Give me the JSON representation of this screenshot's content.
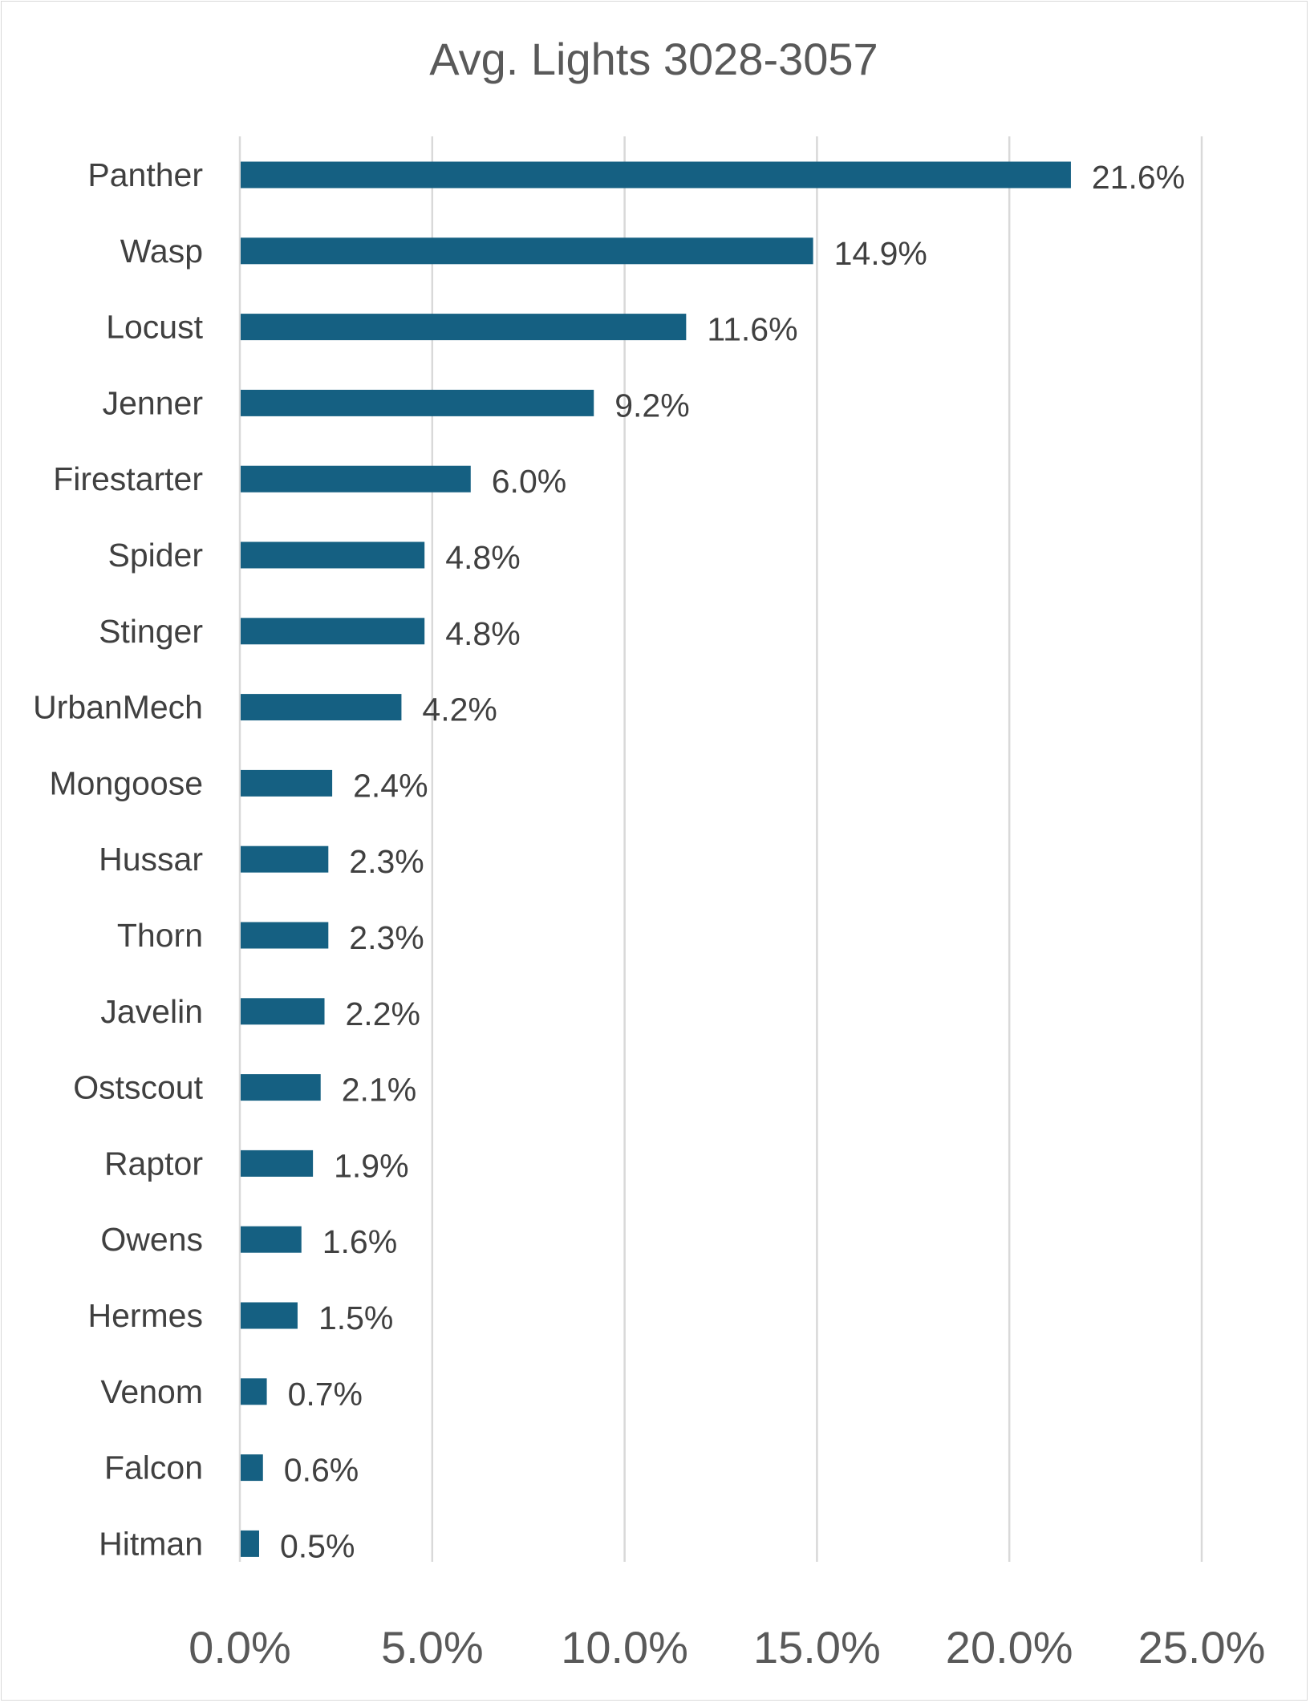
{
  "chart_data": {
    "type": "bar",
    "orientation": "horizontal",
    "title": "Avg. Lights 3028-3057",
    "xlabel": "",
    "ylabel": "",
    "xlim": [
      0,
      25
    ],
    "x_ticks": [
      "0.0%",
      "5.0%",
      "10.0%",
      "15.0%",
      "20.0%",
      "25.0%"
    ],
    "x_tick_values": [
      0,
      5,
      10,
      15,
      20,
      25
    ],
    "grid": "vertical",
    "legend": "none",
    "bar_color": "#156082",
    "categories": [
      "Panther",
      "Wasp",
      "Locust",
      "Jenner",
      "Firestarter",
      "Spider",
      "Stinger",
      "UrbanMech",
      "Mongoose",
      "Hussar",
      "Thorn",
      "Javelin",
      "Ostscout",
      "Raptor",
      "Owens",
      "Hermes",
      "Venom",
      "Falcon",
      "Hitman"
    ],
    "values": [
      21.6,
      14.9,
      11.6,
      9.2,
      6.0,
      4.8,
      4.8,
      4.2,
      2.4,
      2.3,
      2.3,
      2.2,
      2.1,
      1.9,
      1.6,
      1.5,
      0.7,
      0.6,
      0.5
    ],
    "data_labels": [
      "21.6%",
      "14.9%",
      "11.6%",
      "9.2%",
      "6.0%",
      "4.8%",
      "4.8%",
      "4.2%",
      "2.4%",
      "2.3%",
      "2.3%",
      "2.2%",
      "2.1%",
      "1.9%",
      "1.6%",
      "1.5%",
      "0.7%",
      "0.6%",
      "0.5%"
    ]
  }
}
